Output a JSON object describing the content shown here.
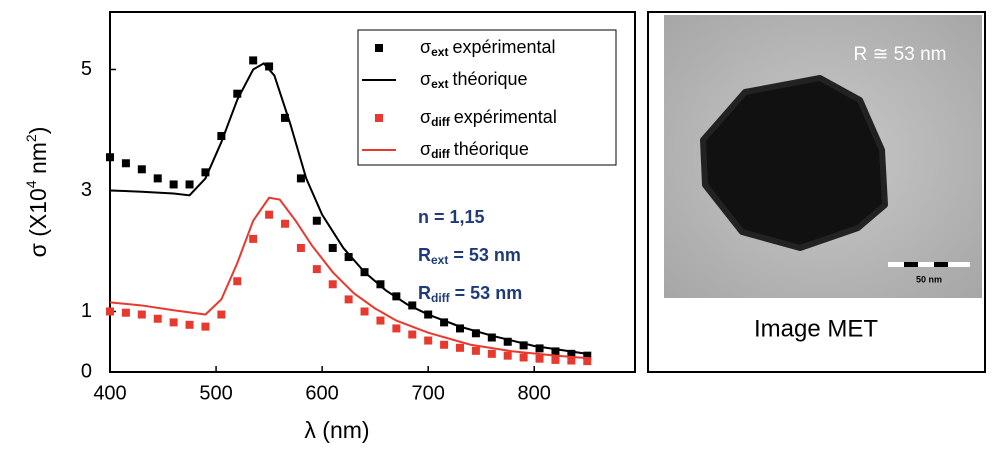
{
  "chart_data": {
    "type": "line",
    "x_label": "λ (nm)",
    "y_label": {
      "main": "σ (X10",
      "sup1": "4",
      "mid": " nm",
      "sup2": "2",
      "end": ")"
    },
    "xlim": [
      400,
      895
    ],
    "xticks": [
      400,
      500,
      600,
      700,
      800
    ],
    "ylim": [
      0,
      5.95
    ],
    "yticks": [
      0,
      1,
      3,
      5
    ],
    "legend": "upper right",
    "series": [
      {
        "symbol": "σ",
        "subscript": "ext",
        "name": "expérimental",
        "color": "#000000",
        "style": "markers",
        "x": [
          400,
          415,
          430,
          445,
          460,
          475,
          490,
          505,
          520,
          535,
          550,
          565,
          580,
          595,
          610,
          625,
          640,
          655,
          670,
          685,
          700,
          715,
          730,
          745,
          760,
          775,
          790,
          805,
          820,
          835,
          850
        ],
        "values": [
          3.55,
          3.45,
          3.35,
          3.2,
          3.1,
          3.1,
          3.3,
          3.9,
          4.6,
          5.15,
          5.05,
          4.2,
          3.2,
          2.5,
          2.05,
          1.9,
          1.65,
          1.45,
          1.25,
          1.1,
          0.95,
          0.82,
          0.72,
          0.64,
          0.57,
          0.5,
          0.44,
          0.39,
          0.34,
          0.3,
          0.27
        ]
      },
      {
        "symbol": "σ",
        "subscript": "ext",
        "name": "théorique",
        "color": "#000000",
        "style": "line",
        "x": [
          400,
          430,
          460,
          475,
          490,
          505,
          520,
          535,
          545,
          555,
          570,
          585,
          600,
          620,
          640,
          660,
          680,
          700,
          730,
          760,
          800,
          850
        ],
        "values": [
          3.0,
          2.98,
          2.95,
          2.92,
          3.2,
          3.8,
          4.5,
          5.0,
          5.1,
          4.9,
          4.1,
          3.2,
          2.6,
          2.05,
          1.65,
          1.35,
          1.12,
          0.95,
          0.75,
          0.6,
          0.43,
          0.3
        ]
      },
      {
        "symbol": "σ",
        "subscript": "diff",
        "name": "expérimental",
        "color": "#e8392e",
        "style": "markers",
        "x": [
          400,
          415,
          430,
          445,
          460,
          475,
          490,
          505,
          520,
          535,
          550,
          565,
          580,
          595,
          610,
          625,
          640,
          655,
          670,
          685,
          700,
          715,
          730,
          745,
          760,
          775,
          790,
          805,
          820,
          835,
          850
        ],
        "values": [
          1.0,
          0.98,
          0.95,
          0.88,
          0.82,
          0.78,
          0.75,
          0.95,
          1.5,
          2.2,
          2.6,
          2.45,
          2.05,
          1.7,
          1.45,
          1.2,
          1.0,
          0.85,
          0.72,
          0.62,
          0.52,
          0.45,
          0.4,
          0.35,
          0.3,
          0.27,
          0.24,
          0.22,
          0.2,
          0.19,
          0.18
        ]
      },
      {
        "symbol": "σ",
        "subscript": "diff",
        "name": "théorique",
        "color": "#e8392e",
        "style": "line",
        "x": [
          400,
          430,
          460,
          490,
          505,
          520,
          535,
          550,
          560,
          575,
          590,
          610,
          630,
          650,
          670,
          700,
          740,
          780,
          820,
          850
        ],
        "values": [
          1.15,
          1.1,
          1.02,
          0.95,
          1.2,
          1.8,
          2.5,
          2.88,
          2.85,
          2.5,
          2.1,
          1.65,
          1.3,
          1.05,
          0.85,
          0.65,
          0.45,
          0.34,
          0.27,
          0.23
        ]
      }
    ],
    "annotations": [
      {
        "main": "n = 1,15"
      },
      {
        "main": "R",
        "sub": "ext",
        "rest": " = 53 nm"
      },
      {
        "main": "R",
        "sub": "diff",
        "rest": " = 53 nm"
      }
    ]
  },
  "image_panel": {
    "annotation": "R ≅ 53 nm",
    "scale_bar": "50 nm",
    "caption": "Image MET"
  }
}
